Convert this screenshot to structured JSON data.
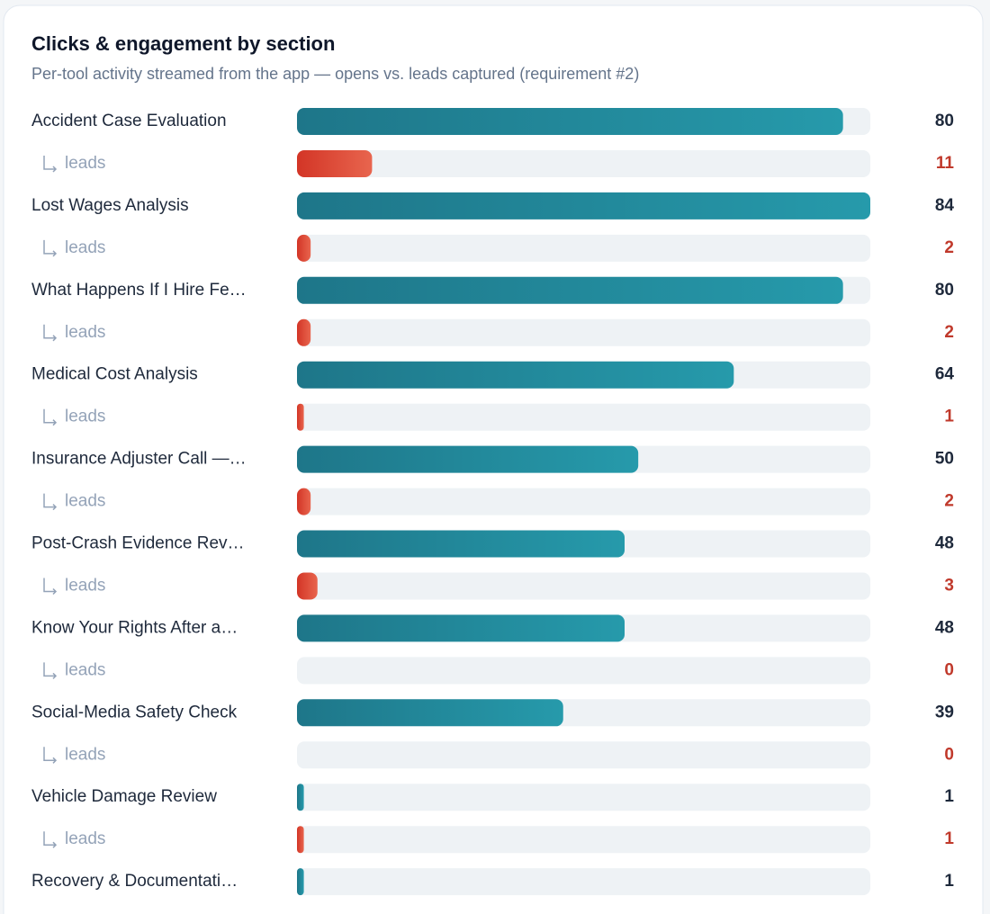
{
  "chart_data": {
    "type": "bar",
    "orientation": "horizontal",
    "title": "Clicks & engagement by section",
    "subtitle": "Per-tool activity streamed from the app — opens vs. leads captured (requirement #2)",
    "categories": [
      "Accident Case Evaluation",
      "Lost Wages Analysis",
      "What Happens If I Hire Fe…",
      "Medical Cost Analysis",
      "Insurance Adjuster Call —…",
      "Post-Crash Evidence Rev…",
      "Know Your Rights After a…",
      "Social-Media Safety Check",
      "Vehicle Damage Review",
      "Recovery & Documentati…"
    ],
    "series": [
      {
        "color": "#1f7d8f",
        "values": [
          80,
          84,
          80,
          64,
          50,
          48,
          48,
          39,
          1,
          1
        ]
      },
      {
        "name": "leads",
        "color": "#d93d2b",
        "values": [
          11,
          2,
          2,
          1,
          2,
          3,
          0,
          0,
          1,
          null
        ]
      }
    ],
    "xlim": [
      0,
      84
    ]
  }
}
